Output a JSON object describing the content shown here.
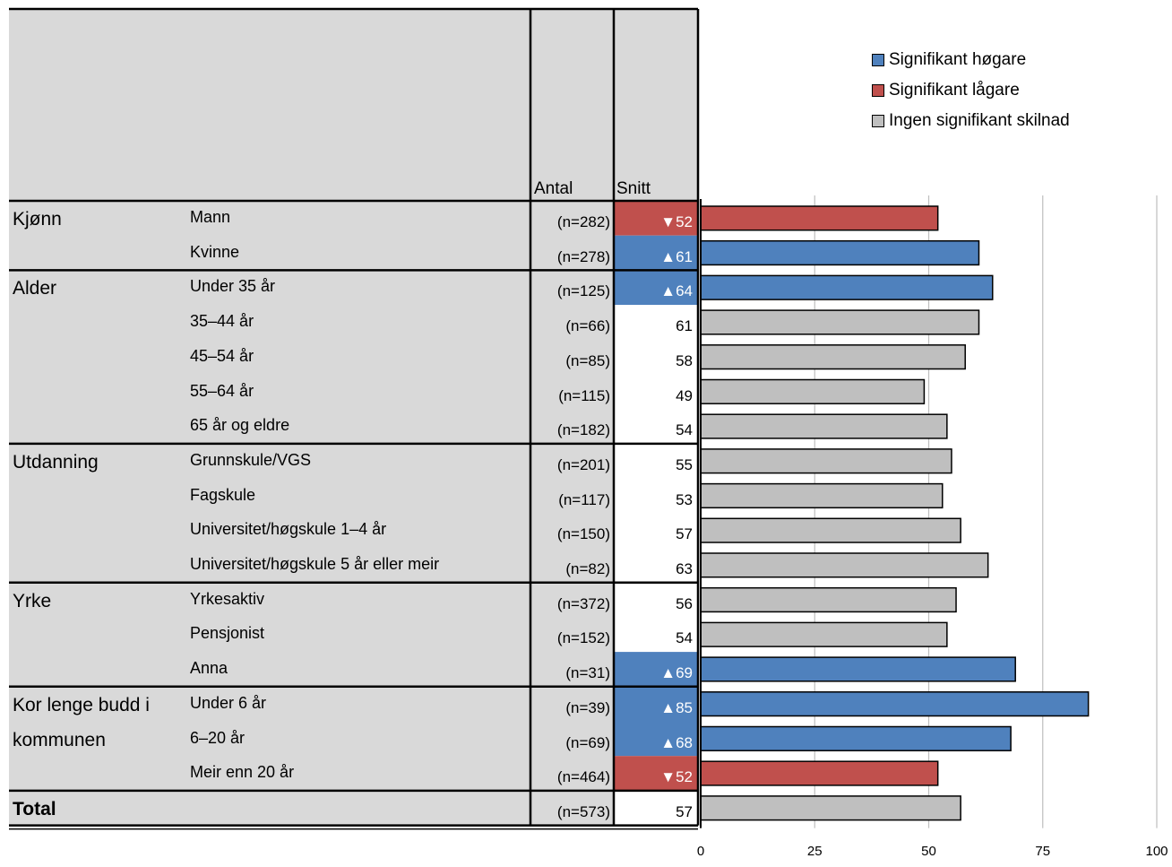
{
  "table": {
    "col_antal": "Antal",
    "col_snitt": "Snitt",
    "groups": [
      {
        "label": "Kjønn",
        "label2": "",
        "start": 0,
        "end": 1
      },
      {
        "label": "Alder",
        "label2": "",
        "start": 2,
        "end": 6
      },
      {
        "label": "Utdanning",
        "label2": "",
        "start": 7,
        "end": 10
      },
      {
        "label": "Yrke",
        "label2": "",
        "start": 11,
        "end": 13
      },
      {
        "label": "Kor lenge budd i",
        "label2": "kommunen",
        "start": 14,
        "end": 16
      },
      {
        "label": "Total",
        "label2": "",
        "start": 17,
        "end": 17,
        "bold": true
      }
    ],
    "rows": [
      {
        "label": "Mann",
        "n": "(n=282)",
        "value": 52,
        "sig": "low"
      },
      {
        "label": "Kvinne",
        "n": "(n=278)",
        "value": 61,
        "sig": "high"
      },
      {
        "label": "Under 35 år",
        "n": "(n=125)",
        "value": 64,
        "sig": "high"
      },
      {
        "label": "35–44 år",
        "n": "(n=66)",
        "value": 61,
        "sig": "none"
      },
      {
        "label": "45–54 år",
        "n": "(n=85)",
        "value": 58,
        "sig": "none"
      },
      {
        "label": "55–64 år",
        "n": "(n=115)",
        "value": 49,
        "sig": "none"
      },
      {
        "label": "65 år og eldre",
        "n": "(n=182)",
        "value": 54,
        "sig": "none"
      },
      {
        "label": "Grunnskule/VGS",
        "n": "(n=201)",
        "value": 55,
        "sig": "none"
      },
      {
        "label": "Fagskule",
        "n": "(n=117)",
        "value": 53,
        "sig": "none"
      },
      {
        "label": "Universitet/høgskule 1–4 år",
        "n": "(n=150)",
        "value": 57,
        "sig": "none"
      },
      {
        "label": "Universitet/høgskule 5 år eller meir",
        "n": "(n=82)",
        "value": 63,
        "sig": "none"
      },
      {
        "label": "Yrkesaktiv",
        "n": "(n=372)",
        "value": 56,
        "sig": "none"
      },
      {
        "label": "Pensjonist",
        "n": "(n=152)",
        "value": 54,
        "sig": "none"
      },
      {
        "label": "Anna",
        "n": "(n=31)",
        "value": 69,
        "sig": "high"
      },
      {
        "label": "Under 6 år",
        "n": "(n=39)",
        "value": 85,
        "sig": "high"
      },
      {
        "label": "6–20 år",
        "n": "(n=69)",
        "value": 68,
        "sig": "high"
      },
      {
        "label": "Meir enn 20 år",
        "n": "(n=464)",
        "value": 52,
        "sig": "low"
      },
      {
        "label": "",
        "n": "(n=573)",
        "value": 57,
        "sig": "none"
      }
    ]
  },
  "chart_data": {
    "type": "bar",
    "orientation": "horizontal",
    "categories": [
      "Mann",
      "Kvinne",
      "Under 35 år",
      "35–44 år",
      "45–54 år",
      "55–64 år",
      "65 år og eldre",
      "Grunnskule/VGS",
      "Fagskule",
      "Universitet/høgskule 1–4 år",
      "Universitet/høgskule 5 år eller meir",
      "Yrkesaktiv",
      "Pensjonist",
      "Anna",
      "Under 6 år",
      "6–20 år",
      "Meir enn 20 år",
      "Total"
    ],
    "values": [
      52,
      61,
      64,
      61,
      58,
      49,
      54,
      55,
      53,
      57,
      63,
      56,
      54,
      69,
      85,
      68,
      52,
      57
    ],
    "xlim": [
      0,
      100
    ],
    "xticks": [
      0,
      25,
      50,
      75,
      100
    ],
    "grid": true,
    "legend_position": "top-right",
    "legend": [
      {
        "key": "high",
        "label": "Signifikant høgare",
        "color": "#4f81bd"
      },
      {
        "key": "low",
        "label": "Signifikant lågare",
        "color": "#c0504d"
      },
      {
        "key": "none",
        "label": "Ingen signifikant skilnad",
        "color": "#bfbfbf"
      }
    ]
  },
  "colors": {
    "header_bg": "#d9d9d9",
    "high": "#4f81bd",
    "low": "#c0504d",
    "none": "#bfbfbf",
    "grid": "#bfbfbf",
    "up_arrow": "▲",
    "down_arrow": "▼"
  }
}
